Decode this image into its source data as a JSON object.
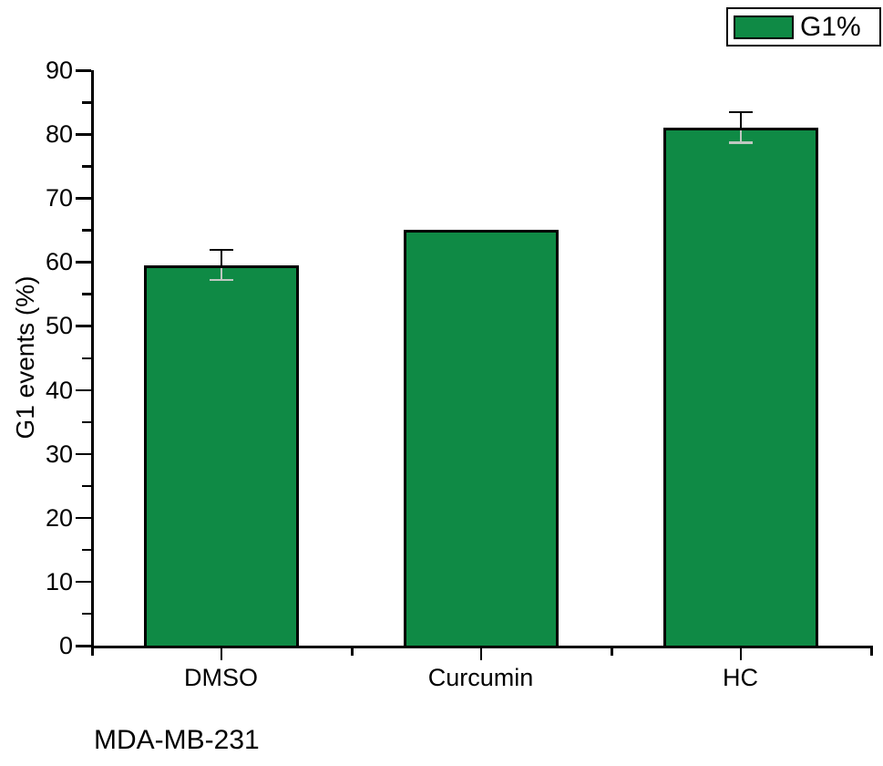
{
  "chart_data": {
    "type": "bar",
    "title": "",
    "categories": [
      "DMSO",
      "Curcumin",
      "HC"
    ],
    "series": [
      {
        "name": "G1%",
        "values": [
          59.5,
          65,
          81
        ],
        "errors": [
          2.3,
          0,
          2.3
        ]
      }
    ],
    "xlabel": "",
    "ylabel": "G1 events (%)",
    "ylim": [
      0,
      90
    ],
    "y_major_tick_step": 10,
    "y_minor_tick_step": 5,
    "y_major_ticks": [
      0,
      10,
      20,
      30,
      40,
      50,
      60,
      70,
      80,
      90
    ],
    "grid": false,
    "legend": {
      "position": "top-right",
      "label": "G1%"
    },
    "annotation": "MDA-MB-231",
    "colors": {
      "bar_fill": "#0f8a45",
      "bar_border": "#000000",
      "axis": "#000000",
      "error_above_bar": "#000000",
      "error_inside_bar": "#bfc8c1",
      "background": "#ffffff",
      "text": "#000000"
    }
  }
}
